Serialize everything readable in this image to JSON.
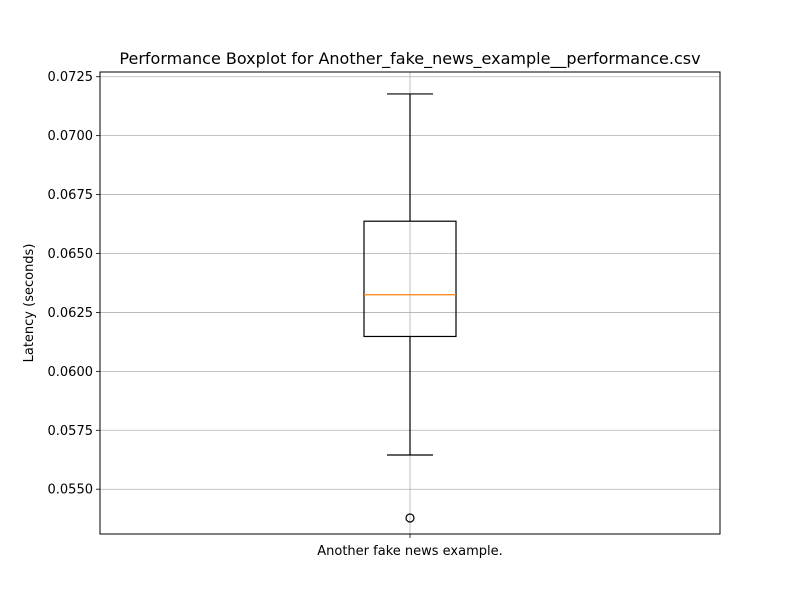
{
  "chart_data": {
    "type": "box",
    "title": "Performance Boxplot for Another_fake_news_example__performance.csv",
    "xlabel": "",
    "ylabel": "Latency (seconds)",
    "categories": [
      "Another fake news example."
    ],
    "ylim": [
      0.0531,
      0.0727
    ],
    "yticks": [
      "0.0550",
      "0.0575",
      "0.0600",
      "0.0625",
      "0.0650",
      "0.0675",
      "0.0700",
      "0.0725"
    ],
    "grid": true,
    "series": [
      {
        "whisker_low": 0.05645,
        "q1": 0.06148,
        "median": 0.06325,
        "q3": 0.06637,
        "whisker_high": 0.07177,
        "outliers": [
          0.05378
        ]
      }
    ],
    "colors": {
      "box": "#000000",
      "median": "#ff7f0e",
      "grid": "#b0b0b0"
    }
  }
}
